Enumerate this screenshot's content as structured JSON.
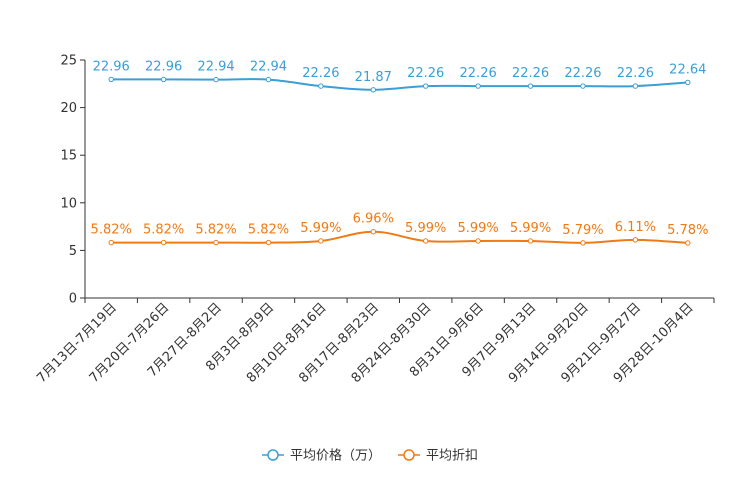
{
  "chart_data": {
    "type": "line",
    "title": "",
    "xlabel": "",
    "ylabel": "",
    "ylim": [
      0,
      25
    ],
    "yticks": [
      0,
      5,
      10,
      15,
      20,
      25
    ],
    "grid": false,
    "legend_position": "bottom-center",
    "categories": [
      "7月13日-7月19日",
      "7月20日-7月26日",
      "7月27日-8月2日",
      "8月3日-8月9日",
      "8月10日-8月16日",
      "8月17日-8月23日",
      "8月24日-8月30日",
      "8月31日-9月6日",
      "9月7日-9月13日",
      "9月14日-9月20日",
      "9月21日-9月27日",
      "9月28日-10月4日"
    ],
    "series": [
      {
        "name": "平均价格（万）",
        "color": "#3a9fd6",
        "values": [
          22.96,
          22.96,
          22.94,
          22.94,
          22.26,
          21.87,
          22.26,
          22.26,
          22.26,
          22.26,
          22.26,
          22.64
        ],
        "labels": [
          "22.96",
          "22.96",
          "22.94",
          "22.94",
          "22.26",
          "21.87",
          "22.26",
          "22.26",
          "22.26",
          "22.26",
          "22.26",
          "22.64"
        ]
      },
      {
        "name": "平均折扣",
        "color": "#f07a14",
        "values": [
          5.82,
          5.82,
          5.82,
          5.82,
          5.99,
          6.96,
          5.99,
          5.99,
          5.99,
          5.79,
          6.11,
          5.78
        ],
        "labels": [
          "5.82%",
          "5.82%",
          "5.82%",
          "5.82%",
          "5.99%",
          "6.96%",
          "5.99%",
          "5.99%",
          "5.99%",
          "5.79%",
          "6.11%",
          "5.78%"
        ]
      }
    ]
  }
}
